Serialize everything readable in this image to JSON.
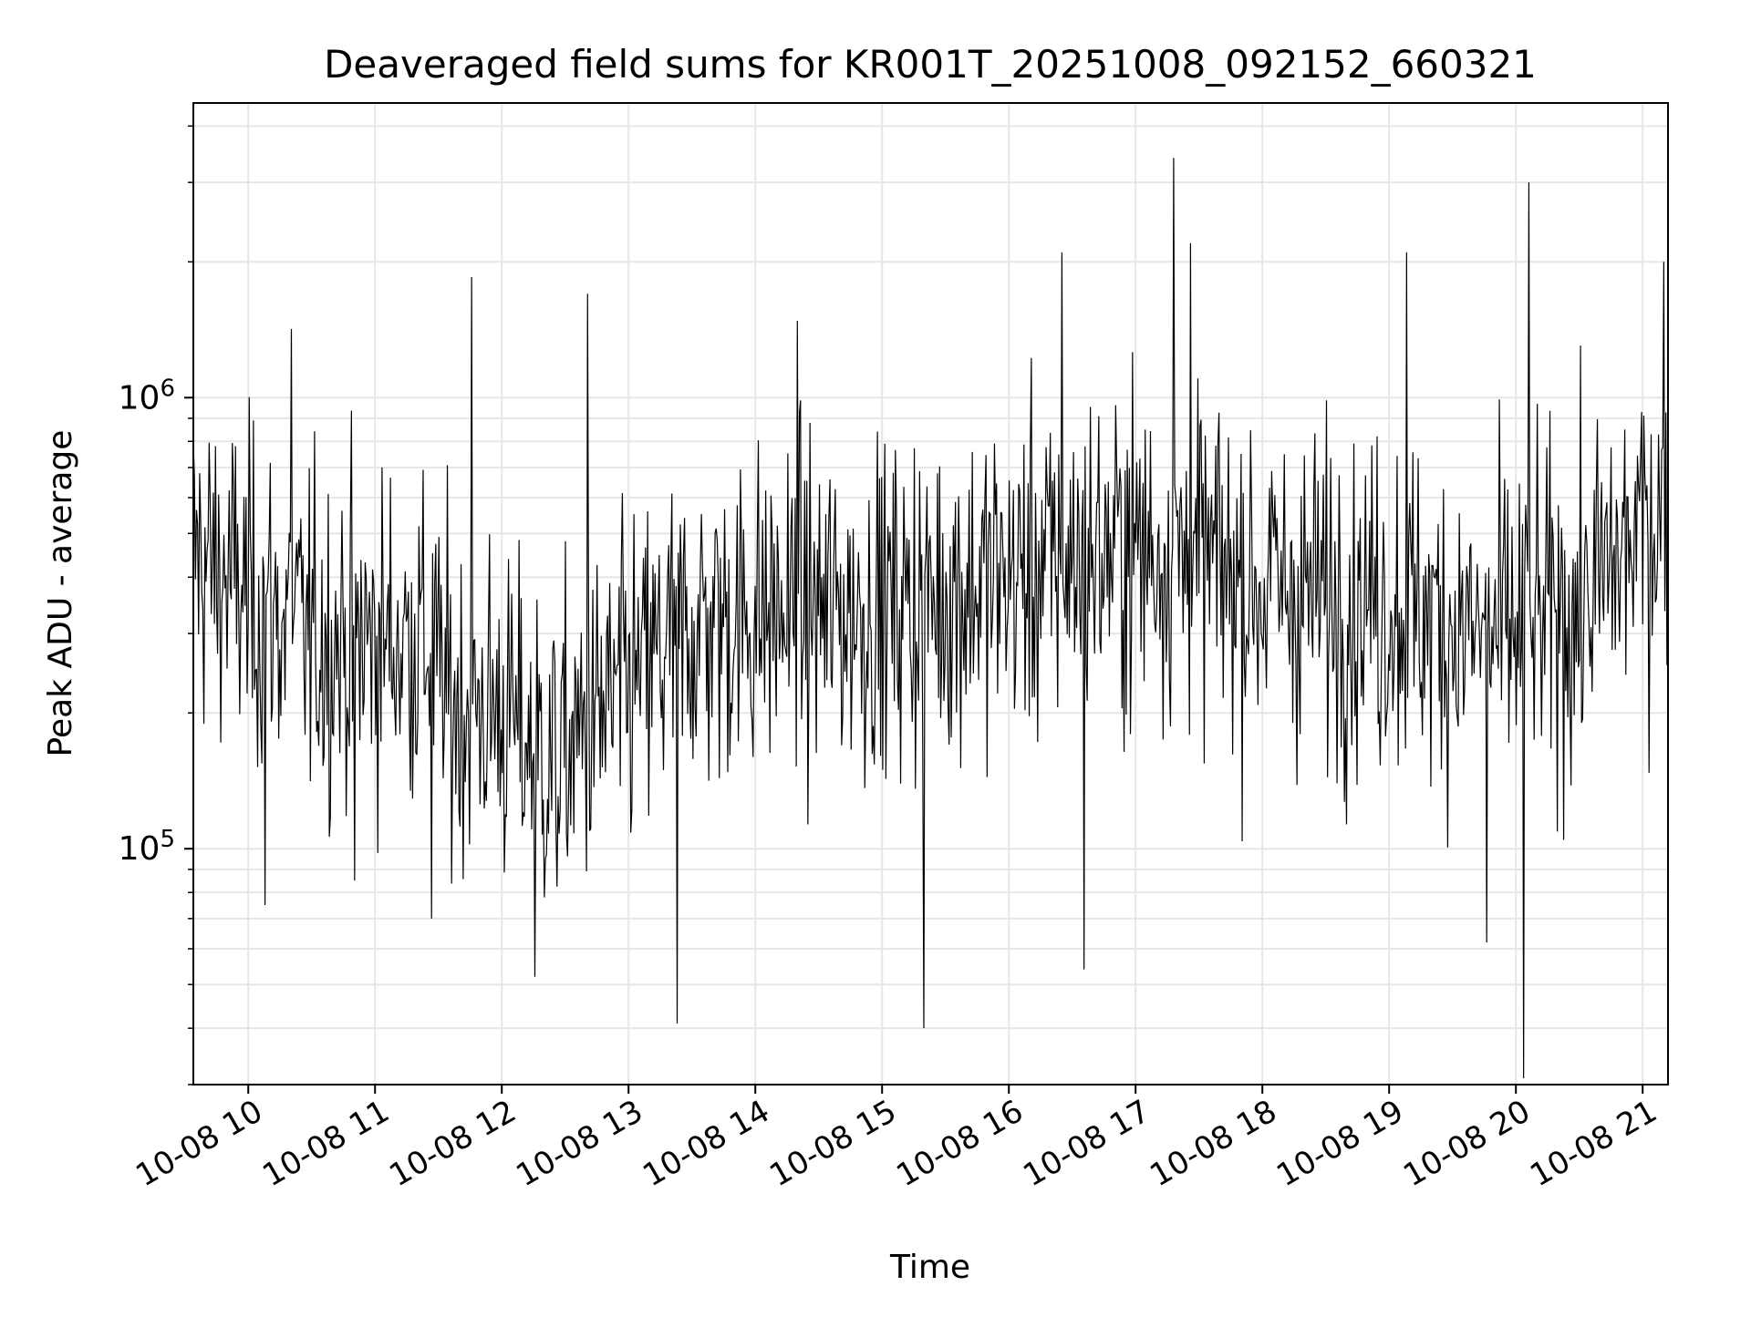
{
  "chart_data": {
    "type": "line",
    "title": "Deaveraged field sums for KR001T_20251008_092152_660321",
    "xlabel": "Time",
    "ylabel": "Peak ADU - average",
    "y_scale": "log",
    "ylim": [
      30000,
      4500000
    ],
    "xlim_hours": [
      9.5667,
      21.2
    ],
    "x_ticks": [
      {
        "hour": 10,
        "label": "10-08 10"
      },
      {
        "hour": 11,
        "label": "10-08 11"
      },
      {
        "hour": 12,
        "label": "10-08 12"
      },
      {
        "hour": 13,
        "label": "10-08 13"
      },
      {
        "hour": 14,
        "label": "10-08 14"
      },
      {
        "hour": 15,
        "label": "10-08 15"
      },
      {
        "hour": 16,
        "label": "10-08 16"
      },
      {
        "hour": 17,
        "label": "10-08 17"
      },
      {
        "hour": 18,
        "label": "10-08 18"
      },
      {
        "hour": 19,
        "label": "10-08 19"
      },
      {
        "hour": 20,
        "label": "10-08 20"
      },
      {
        "hour": 21,
        "label": "10-08 21"
      }
    ],
    "y_major_ticks": [
      {
        "value": 100000,
        "base": "10",
        "exp": "5"
      },
      {
        "value": 1000000,
        "base": "10",
        "exp": "6"
      }
    ],
    "grid": true,
    "line_color": "#000000",
    "grid_color": "#e6e6e6",
    "series": [
      {
        "name": "deaveraged field sums",
        "baseline_envelope": [
          {
            "hour": 9.57,
            "value": 450000
          },
          {
            "hour": 10.0,
            "value": 360000
          },
          {
            "hour": 10.5,
            "value": 290000
          },
          {
            "hour": 11.0,
            "value": 290000
          },
          {
            "hour": 11.4,
            "value": 290000
          },
          {
            "hour": 11.6,
            "value": 210000
          },
          {
            "hour": 12.0,
            "value": 200000
          },
          {
            "hour": 12.4,
            "value": 150000
          },
          {
            "hour": 12.8,
            "value": 200000
          },
          {
            "hour": 13.5,
            "value": 310000
          },
          {
            "hour": 14.0,
            "value": 330000
          },
          {
            "hour": 15.0,
            "value": 340000
          },
          {
            "hour": 16.0,
            "value": 400000
          },
          {
            "hour": 17.0,
            "value": 470000
          },
          {
            "hour": 17.5,
            "value": 440000
          },
          {
            "hour": 18.0,
            "value": 380000
          },
          {
            "hour": 19.0,
            "value": 350000
          },
          {
            "hour": 19.8,
            "value": 290000
          },
          {
            "hour": 20.5,
            "value": 340000
          },
          {
            "hour": 21.2,
            "value": 600000
          }
        ],
        "notable_points": [
          {
            "hour": 10.13,
            "value": 75000
          },
          {
            "hour": 10.34,
            "value": 1420000
          },
          {
            "hour": 10.84,
            "value": 85000
          },
          {
            "hour": 11.45,
            "value": 70000
          },
          {
            "hour": 11.76,
            "value": 1850000
          },
          {
            "hour": 12.26,
            "value": 52000
          },
          {
            "hour": 12.68,
            "value": 1700000
          },
          {
            "hour": 13.38,
            "value": 41000
          },
          {
            "hour": 14.33,
            "value": 1480000
          },
          {
            "hour": 15.33,
            "value": 40000
          },
          {
            "hour": 16.42,
            "value": 2100000
          },
          {
            "hour": 16.59,
            "value": 54000
          },
          {
            "hour": 17.3,
            "value": 3400000
          },
          {
            "hour": 17.43,
            "value": 2200000
          },
          {
            "hour": 19.14,
            "value": 2100000
          },
          {
            "hour": 19.77,
            "value": 62000
          },
          {
            "hour": 20.06,
            "value": 31000
          },
          {
            "hour": 20.1,
            "value": 3000000
          },
          {
            "hour": 21.17,
            "value": 2000000
          }
        ],
        "noise_spread_decades": 0.62,
        "sample_count": 1400
      }
    ]
  }
}
